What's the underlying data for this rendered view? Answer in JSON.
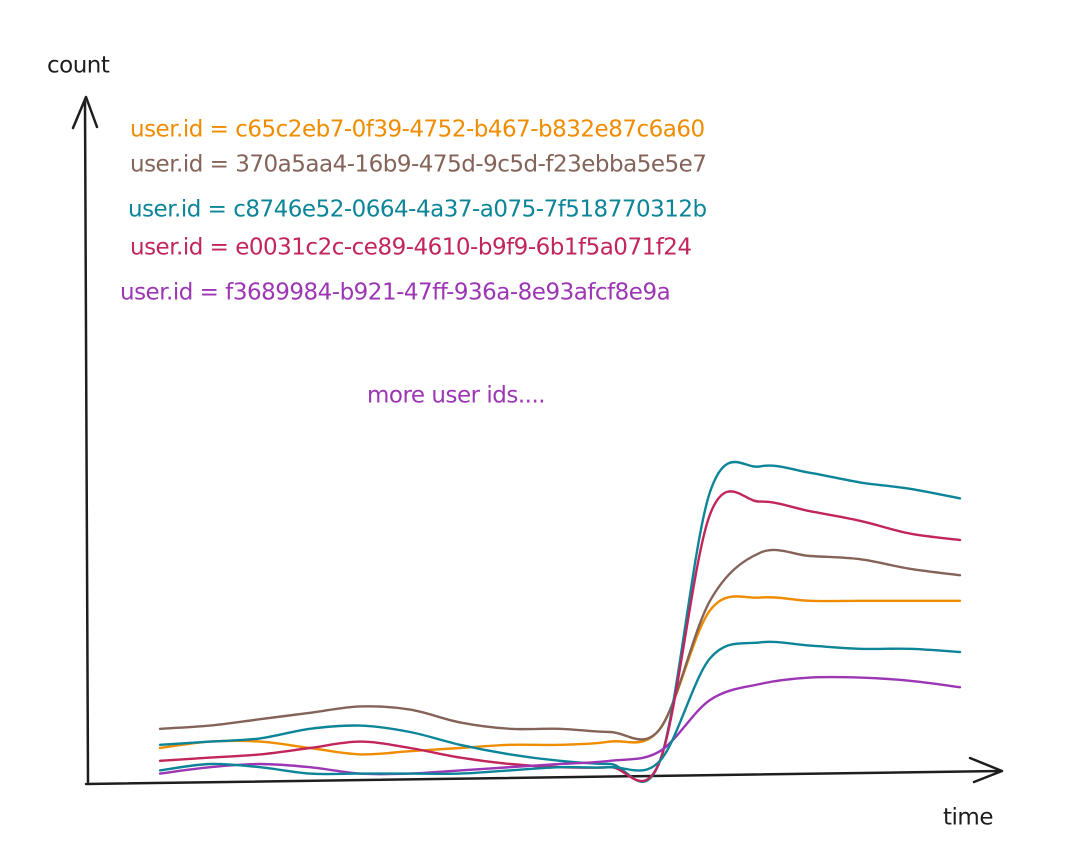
{
  "chart_data": {
    "type": "line",
    "y_label": "count",
    "x_label": "time",
    "annotation": "more user ids....",
    "annotation_color": "#9c36b5",
    "categories": [
      null,
      null,
      null,
      null,
      null,
      null,
      null,
      null,
      null,
      null,
      null,
      null,
      null,
      null,
      null,
      null,
      null
    ],
    "ylim": [
      0,
      100
    ],
    "series": [
      {
        "name": "user.id = c65c2eb7-0f39-4752-b467-b832e87c6a60",
        "color": "#f08c00",
        "values": [
          10,
          12,
          12,
          10,
          8,
          9,
          10,
          11,
          11,
          12,
          16,
          53,
          57,
          56,
          56,
          56,
          56
        ]
      },
      {
        "name": "user.id = 370a5aa4-16b9-475d-9c5d-f23ebba5e5e7",
        "color": "#846358",
        "values": [
          16,
          17,
          19,
          21,
          23,
          22,
          18,
          16,
          16,
          15,
          16,
          56,
          71,
          70,
          69,
          66,
          64
        ]
      },
      {
        "name": "user.id = c8746e52-0664-4a37-a075-7f518770312b",
        "color": "#0c8599",
        "values": [
          11,
          12,
          13,
          16,
          17,
          15,
          11,
          8,
          6,
          5,
          6,
          90,
          98,
          96,
          93,
          91,
          88
        ]
      },
      {
        "name": "user.id = e0031c2c-ce89-4610-b9f9-6b1f5a071f24",
        "color": "#c2255c",
        "values": [
          6,
          7,
          8,
          10,
          12,
          10,
          7,
          5,
          4,
          4,
          6,
          83,
          87,
          84,
          81,
          77,
          75
        ]
      },
      {
        "name": "user.id = f3689984-b921-47ff-936a-8e93afcf8e9a",
        "color": "#9c36b5",
        "values": [
          2,
          4,
          5,
          4,
          2,
          2,
          3,
          4,
          5,
          6,
          9,
          25,
          30,
          32,
          32,
          31,
          29
        ]
      },
      {
        "color": "#0c8599",
        "values": [
          3,
          5,
          4,
          2,
          2,
          2,
          2,
          3,
          4,
          4,
          6,
          38,
          43,
          42,
          41,
          41,
          40
        ]
      }
    ]
  }
}
